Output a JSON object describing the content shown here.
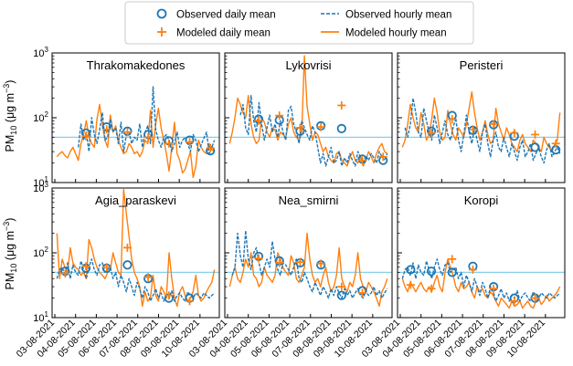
{
  "chart_data": {
    "type": "line",
    "y_scale": "log",
    "ylim": [
      10,
      1000
    ],
    "y_ticks": [
      {
        "value": 10,
        "label": "10",
        "sup": "1"
      },
      {
        "value": 100,
        "label": "10",
        "sup": "2"
      },
      {
        "value": 1000,
        "label": "10",
        "sup": "3"
      }
    ],
    "x_days": 7.8,
    "x_ticks": [
      "03-08-2021",
      "04-08-2021",
      "05-08-2021",
      "06-08-2021",
      "07-08-2021",
      "08-08-2021",
      "09-08-2021",
      "10-08-2021"
    ],
    "threshold": 50,
    "ylabel": {
      "main": "PM",
      "sub": "10",
      "unit": "(μg m",
      "exp": "−3",
      "close": ")"
    },
    "legend": [
      {
        "key": "obs_daily",
        "label": "Observed daily mean"
      },
      {
        "key": "obs_hourly",
        "label": "Observed hourly mean"
      },
      {
        "key": "mod_daily",
        "label": "Modeled daily mean"
      },
      {
        "key": "mod_hourly",
        "label": "Modeled hourly mean"
      }
    ],
    "colors": {
      "observed": "#1f77b4",
      "modeled": "#ff7f0e",
      "threshold": "#87ceeb"
    },
    "panels": [
      {
        "name": "Thrakomakedones",
        "obs_daily": [
          null,
          58,
          72,
          62,
          55,
          44,
          45,
          31
        ],
        "mod_daily": [
          null,
          52,
          66,
          60,
          50,
          40,
          42,
          34
        ],
        "obs_hourly": [
          null,
          null,
          null,
          null,
          null,
          null,
          null,
          null,
          35,
          80,
          45,
          60,
          30,
          100,
          55,
          40,
          65,
          120,
          45,
          50,
          95,
          60,
          70,
          40,
          85,
          30,
          55,
          60,
          40,
          50,
          45,
          80,
          35,
          60,
          75,
          40,
          300,
          65,
          45,
          35,
          50,
          55,
          45,
          30,
          40,
          60,
          35,
          45,
          50,
          40,
          30,
          55,
          45,
          30,
          38,
          48,
          60,
          28,
          35,
          45
        ],
        "mod_hourly": [
          25,
          28,
          30,
          26,
          24,
          30,
          35,
          28,
          22,
          40,
          55,
          90,
          50,
          40,
          35,
          95,
          160,
          80,
          45,
          35,
          110,
          60,
          75,
          45,
          35,
          28,
          30,
          40,
          35,
          28,
          30,
          25,
          30,
          45,
          40,
          130,
          35,
          80,
          140,
          70,
          45,
          28,
          15,
          35,
          85,
          28,
          22,
          14,
          16,
          22,
          30,
          12,
          18,
          45,
          35,
          30,
          28,
          40,
          32,
          30
        ]
      },
      {
        "name": "Lykovrisi",
        "obs_daily": [
          null,
          95,
          92,
          62,
          75,
          68,
          23,
          22
        ],
        "mod_daily": [
          null,
          90,
          108,
          70,
          72,
          155,
          22,
          25
        ],
        "obs_hourly": [
          null,
          null,
          null,
          null,
          110,
          160,
          70,
          55,
          220,
          90,
          60,
          170,
          80,
          45,
          70,
          110,
          60,
          80,
          50,
          90,
          60,
          45,
          130,
          150,
          80,
          60,
          40,
          90,
          70,
          55,
          45,
          75,
          60,
          35,
          20,
          28,
          18,
          25,
          35,
          20,
          22,
          30,
          18,
          24,
          20,
          28,
          22,
          18,
          30,
          25,
          20,
          26,
          22,
          28,
          24,
          20,
          30,
          25,
          22,
          28
        ],
        "mod_hourly": [
          40,
          60,
          100,
          200,
          160,
          120,
          100,
          220,
          80,
          50,
          40,
          45,
          100,
          85,
          60,
          50,
          70,
          65,
          45,
          60,
          55,
          50,
          80,
          100,
          60,
          50,
          45,
          60,
          900,
          150,
          80,
          45,
          60,
          55,
          40,
          30,
          35,
          25,
          22,
          20,
          28,
          30,
          22,
          20,
          18,
          24,
          30,
          22,
          20,
          25,
          18,
          22,
          30,
          25,
          20,
          28,
          35,
          40,
          30,
          28
        ]
      },
      {
        "name": "Peristeri",
        "obs_daily": [
          null,
          62,
          108,
          64,
          78,
          52,
          35,
          32
        ],
        "mod_daily": [
          null,
          58,
          95,
          66,
          80,
          58,
          55,
          40
        ],
        "obs_hourly": [
          null,
          70,
          50,
          80,
          200,
          120,
          60,
          50,
          140,
          90,
          60,
          45,
          110,
          70,
          40,
          60,
          90,
          55,
          45,
          70,
          100,
          45,
          30,
          55,
          110,
          60,
          40,
          70,
          45,
          30,
          60,
          80,
          40,
          25,
          45,
          60,
          35,
          30,
          50,
          35,
          25,
          40,
          30,
          22,
          35,
          45,
          25,
          30,
          40,
          22,
          28,
          35,
          25,
          20,
          32,
          40,
          25,
          30,
          35,
          28
        ],
        "mod_hourly": [
          35,
          45,
          80,
          160,
          100,
          70,
          60,
          120,
          80,
          45,
          55,
          95,
          200,
          120,
          60,
          45,
          50,
          130,
          80,
          55,
          45,
          70,
          60,
          50,
          80,
          140,
          250,
          120,
          70,
          45,
          60,
          90,
          55,
          40,
          45,
          140,
          80,
          60,
          45,
          70,
          55,
          40,
          35,
          30,
          45,
          55,
          40,
          35,
          30,
          45,
          40,
          35,
          30,
          50,
          40,
          35,
          30,
          38,
          45,
          120
        ]
      },
      {
        "name": "Agia_paraskevi",
        "obs_daily": [
          52,
          58,
          58,
          65,
          40,
          20,
          20,
          null
        ],
        "mod_daily": [
          48,
          62,
          60,
          120,
          42,
          22,
          18,
          null
        ],
        "obs_hourly": [
          40,
          55,
          60,
          45,
          70,
          40,
          65,
          50,
          45,
          75,
          55,
          40,
          60,
          80,
          55,
          45,
          65,
          70,
          50,
          55,
          60,
          40,
          50,
          30,
          45,
          35,
          25,
          40,
          30,
          22,
          35,
          28,
          20,
          30,
          25,
          18,
          22,
          28,
          20,
          24,
          18,
          22,
          20,
          26,
          18,
          22,
          24,
          20,
          18,
          25,
          22,
          20,
          24,
          22,
          20,
          24,
          22,
          20,
          22,
          24
        ],
        "mod_hourly": [
          200,
          40,
          80,
          60,
          50,
          120,
          70,
          60,
          55,
          45,
          50,
          40,
          160,
          120,
          80,
          60,
          50,
          45,
          40,
          50,
          55,
          100,
          70,
          50,
          45,
          950,
          400,
          180,
          80,
          50,
          40,
          30,
          15,
          25,
          18,
          20,
          45,
          22,
          18,
          30,
          25,
          20,
          100,
          40,
          20,
          15,
          25,
          30,
          22,
          18,
          20,
          25,
          45,
          22,
          18,
          20,
          25,
          30,
          35,
          55
        ]
      },
      {
        "name": "Nea_smirni",
        "obs_daily": [
          null,
          88,
          75,
          70,
          65,
          22,
          26,
          null
        ],
        "mod_daily": [
          null,
          82,
          70,
          72,
          68,
          30,
          24,
          null
        ],
        "obs_hourly": [
          null,
          45,
          60,
          200,
          90,
          60,
          220,
          80,
          55,
          100,
          120,
          70,
          45,
          60,
          80,
          60,
          150,
          80,
          55,
          45,
          70,
          65,
          55,
          45,
          60,
          80,
          40,
          35,
          50,
          40,
          30,
          25,
          35,
          28,
          22,
          30,
          25,
          20,
          28,
          22,
          30,
          24,
          20,
          28,
          22,
          26,
          20,
          24,
          28,
          22,
          20,
          26,
          22,
          24,
          30,
          22,
          26,
          20,
          24,
          28
        ],
        "mod_hourly": [
          30,
          45,
          60,
          40,
          35,
          50,
          80,
          60,
          100,
          45,
          40,
          30,
          35,
          60,
          45,
          40,
          35,
          45,
          100,
          80,
          60,
          50,
          45,
          90,
          70,
          40,
          35,
          45,
          60,
          200,
          80,
          45,
          35,
          40,
          30,
          45,
          60,
          35,
          25,
          30,
          45,
          120,
          40,
          30,
          25,
          35,
          30,
          45,
          100,
          40,
          30,
          25,
          35,
          30,
          25,
          20,
          15,
          25,
          30,
          40
        ]
      },
      {
        "name": "Koropi",
        "obs_daily": [
          55,
          52,
          50,
          62,
          30,
          20,
          20,
          null
        ],
        "mod_daily": [
          32,
          28,
          80,
          55,
          28,
          18,
          20,
          null
        ],
        "obs_hourly": [
          40,
          55,
          60,
          45,
          70,
          40,
          65,
          50,
          45,
          75,
          55,
          40,
          60,
          80,
          55,
          45,
          65,
          70,
          50,
          55,
          60,
          40,
          50,
          30,
          45,
          35,
          25,
          40,
          30,
          22,
          35,
          28,
          20,
          30,
          25,
          18,
          22,
          28,
          20,
          24,
          18,
          22,
          20,
          26,
          18,
          22,
          24,
          20,
          18,
          25,
          22,
          20,
          24,
          22,
          20,
          24,
          22,
          20,
          22,
          24
        ],
        "mod_hourly": [
          40,
          30,
          25,
          35,
          30,
          25,
          30,
          35,
          28,
          25,
          30,
          25,
          35,
          45,
          30,
          25,
          50,
          80,
          60,
          45,
          30,
          25,
          35,
          28,
          30,
          35,
          25,
          20,
          30,
          25,
          28,
          22,
          20,
          25,
          22,
          18,
          15,
          20,
          18,
          16,
          14,
          18,
          15,
          16,
          18,
          14,
          16,
          18,
          15,
          14,
          18,
          20,
          16,
          18,
          22,
          18,
          20,
          22,
          25,
          30
        ]
      }
    ]
  }
}
